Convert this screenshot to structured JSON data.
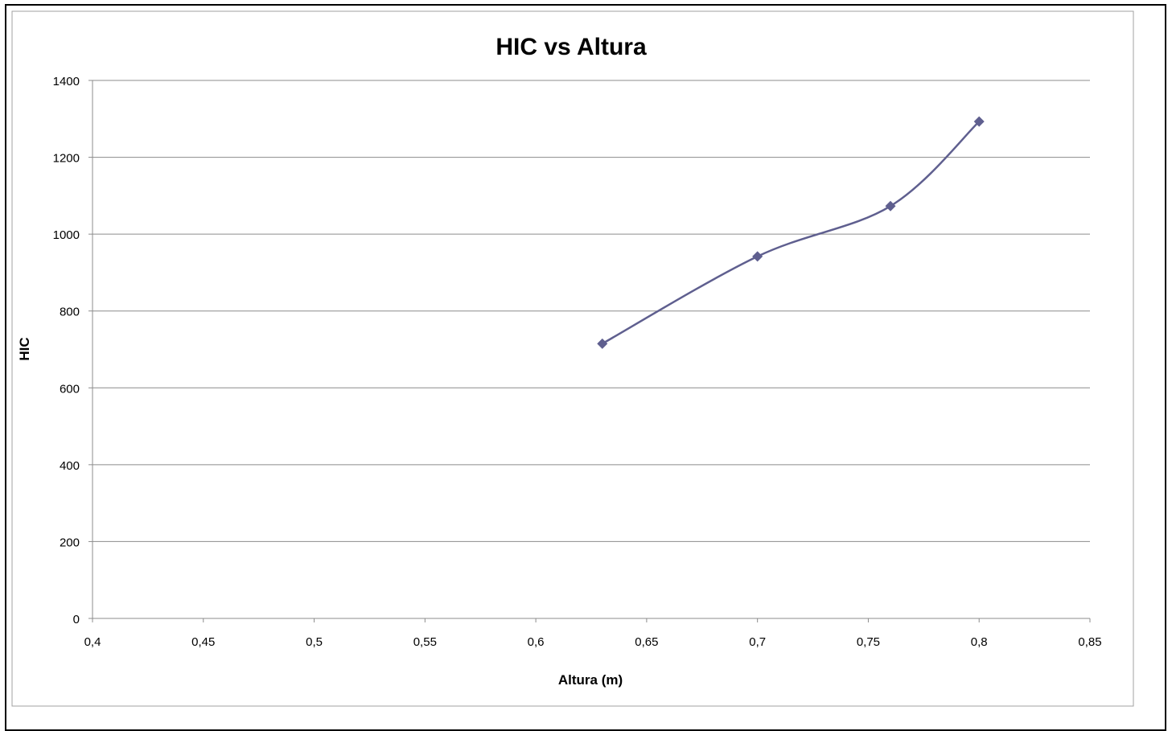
{
  "chart_data": {
    "type": "scatter",
    "title": "HIC vs Altura",
    "xlabel": "Altura (m)",
    "ylabel": "HIC",
    "xlim": [
      0.4,
      0.85
    ],
    "ylim": [
      0,
      1400
    ],
    "x_ticks": [
      0.4,
      0.45,
      0.5,
      0.55,
      0.6,
      0.65,
      0.7,
      0.75,
      0.8,
      0.85
    ],
    "x_tick_labels": [
      "0,4",
      "0,45",
      "0,5",
      "0,55",
      "0,6",
      "0,65",
      "0,7",
      "0,75",
      "0,8",
      "0,85"
    ],
    "y_ticks": [
      0,
      200,
      400,
      600,
      800,
      1000,
      1200,
      1400
    ],
    "y_tick_labels": [
      "0",
      "200",
      "400",
      "600",
      "800",
      "1000",
      "1200",
      "1400"
    ],
    "grid": "horizontal",
    "legend": "none",
    "line_style": "smoothed",
    "marker": "diamond",
    "series": [
      {
        "x": [
          0.63,
          0.7,
          0.76,
          0.8
        ],
        "y": [
          715,
          942,
          1073,
          1293
        ],
        "color": "#5f5f8f"
      }
    ]
  }
}
